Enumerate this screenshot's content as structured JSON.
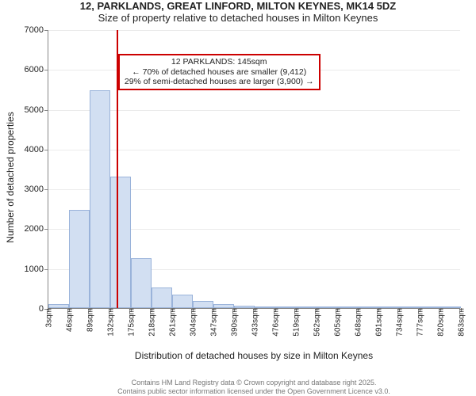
{
  "title_line1": "12, PARKLANDS, GREAT LINFORD, MILTON KEYNES, MK14 5DZ",
  "title_line2": "Size of property relative to detached houses in Milton Keynes",
  "ylabel": "Number of detached properties",
  "xlabel": "Distribution of detached houses by size in Milton Keynes",
  "footer_line1": "Contains HM Land Registry data © Crown copyright and database right 2025.",
  "footer_line2": "Contains public sector information licensed under the Open Government Licence v3.0.",
  "chart": {
    "type": "histogram",
    "background_color": "#ffffff",
    "bar_fill": "#d2dff2",
    "bar_border": "#9ab3da",
    "marker_color": "#cc0000",
    "axis_color": "#888888",
    "grid_color": "rgba(0,0,0,0.08)",
    "ymin": 0,
    "ymax": 7000,
    "ytick_step": 1000,
    "yticks": [
      0,
      1000,
      2000,
      3000,
      4000,
      5000,
      6000,
      7000
    ],
    "xticks": [
      "3sqm",
      "46sqm",
      "89sqm",
      "132sqm",
      "175sqm",
      "218sqm",
      "261sqm",
      "304sqm",
      "347sqm",
      "390sqm",
      "433sqm",
      "476sqm",
      "519sqm",
      "562sqm",
      "605sqm",
      "648sqm",
      "691sqm",
      "734sqm",
      "777sqm",
      "820sqm",
      "863sqm"
    ],
    "bar_values": [
      100,
      2470,
      5460,
      3310,
      1260,
      520,
      340,
      170,
      100,
      60,
      45,
      35,
      25,
      20,
      15,
      12,
      10,
      8,
      6,
      5
    ],
    "marker_position_sqm": 145,
    "annotation": {
      "line1": "12 PARKLANDS: 145sqm",
      "line2": "← 70% of detached houses are smaller (9,412)",
      "line3": "29% of semi-detached houses are larger (3,900) →"
    },
    "label_fontsize": 12,
    "tick_fontsize": 11,
    "annotation_fontsize": 10.5
  }
}
